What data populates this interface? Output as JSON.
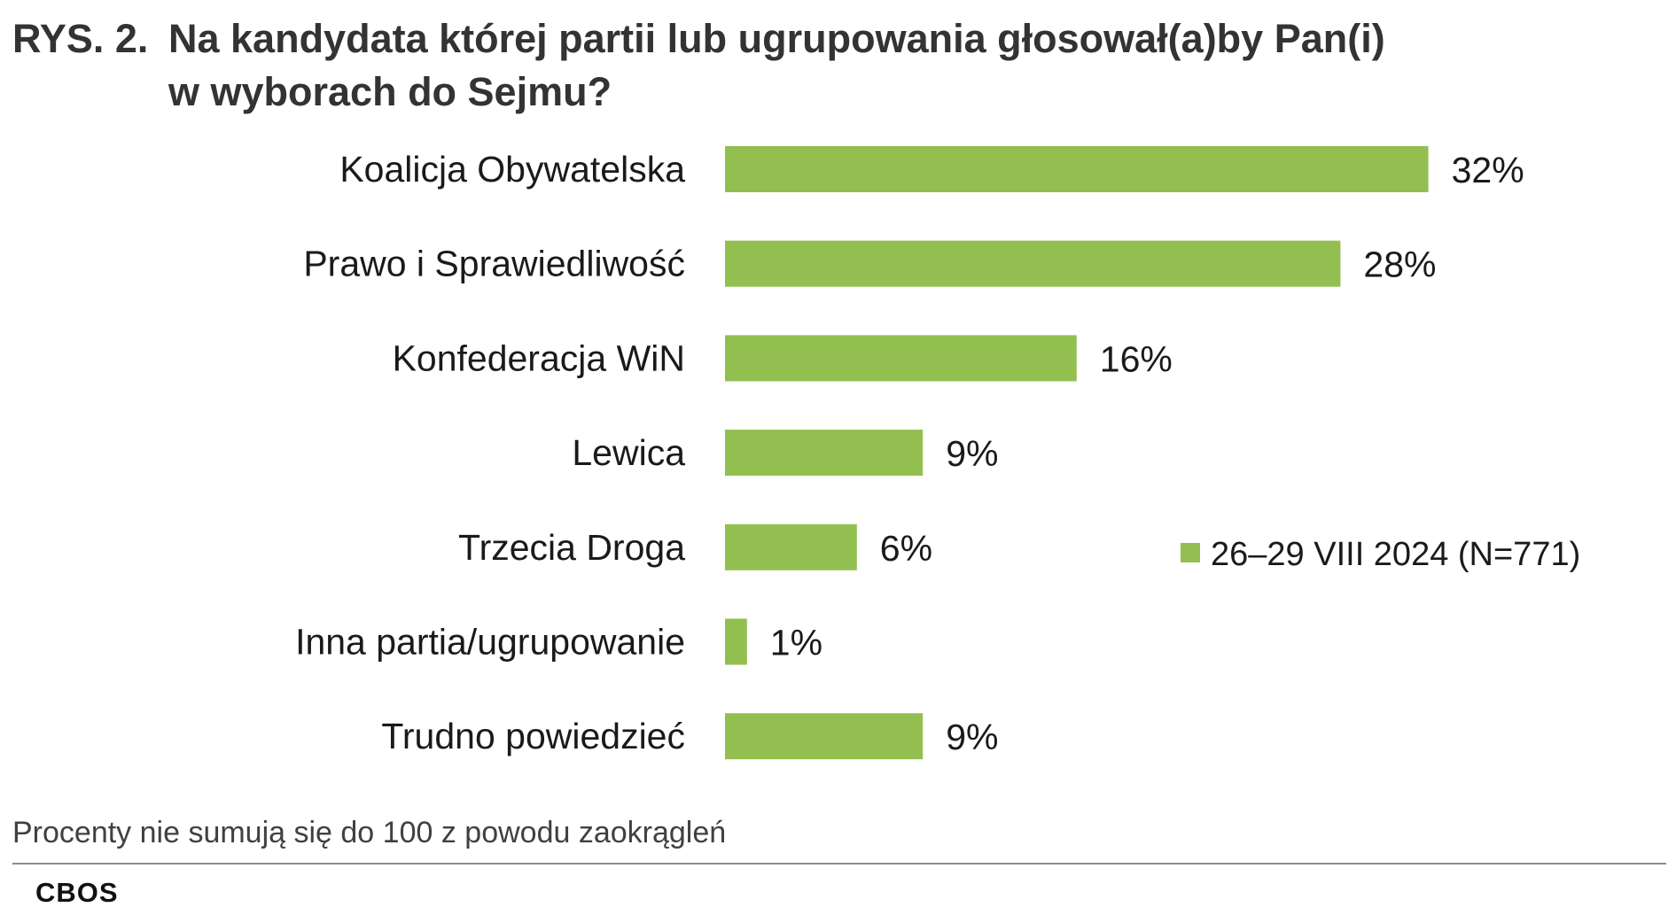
{
  "title": {
    "prefix": "RYS. 2.",
    "line1": "Na kandydata której partii lub ugrupowania głosował(a)by Pan(i)",
    "line2": "w wyborach do Sejmu?"
  },
  "chart_data": {
    "type": "bar",
    "orientation": "horizontal",
    "categories": [
      "Koalicja Obywatelska",
      "Prawo i Sprawiedliwość",
      "Konfederacja WiN",
      "Lewica",
      "Trzecia Droga",
      "Inna partia/ugrupowanie",
      "Trudno powiedzieć"
    ],
    "series": [
      {
        "name": "26–29 VIII 2024 (N=771)",
        "values": [
          32,
          28,
          16,
          9,
          6,
          1,
          9
        ],
        "color": "#92bf4f"
      }
    ],
    "value_labels": [
      "32%",
      "28%",
      "16%",
      "9%",
      "6%",
      "1%",
      "9%"
    ],
    "unit": "%",
    "xlim": [
      0,
      32
    ],
    "grid": false,
    "legend": "right"
  },
  "footnote": "Procenty nie sumują się do 100 z powodu zaokrągleń",
  "source": "CBOS"
}
